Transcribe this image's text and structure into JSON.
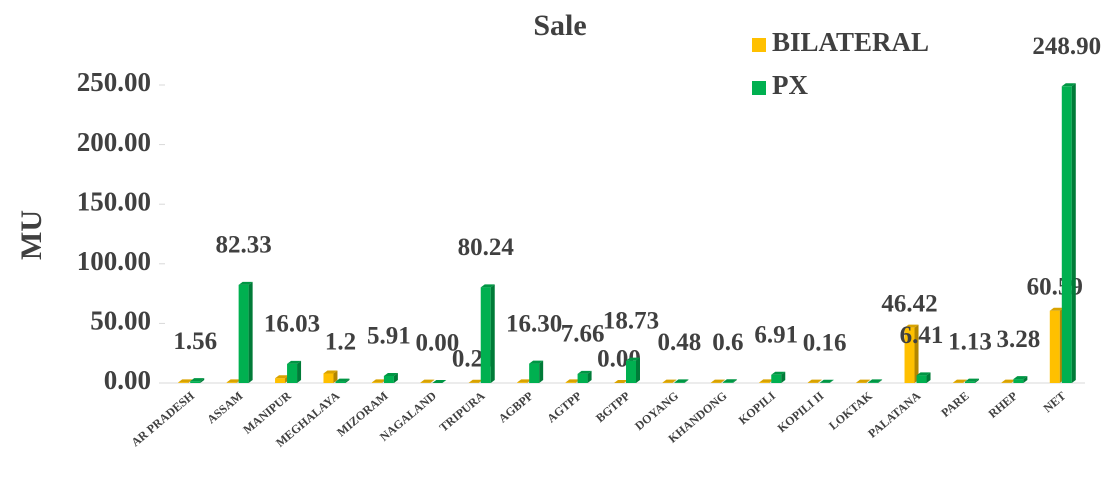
{
  "chart_data": {
    "type": "bar",
    "title": "Sale",
    "y_label": "MU",
    "categories": [
      "AR PRADESH",
      "ASSAM",
      "MANIPUR",
      "MEGHALAYA",
      "MIZORAM",
      "NAGALAND",
      "TRIPURA",
      "AGBPP",
      "AGTPP",
      "BGTPP",
      "DOYANG",
      "KHANDONG",
      "KOPILI",
      "KOPILI II",
      "LOKTAK",
      "PALATANA",
      "PARE",
      "RHEP",
      "NET"
    ],
    "series": [
      {
        "name": "BILATERAL",
        "color": "#ffc000",
        "values": [
          0.5,
          0.5,
          4,
          8,
          0.5,
          0.3,
          0.21,
          0.5,
          0.5,
          0,
          0.3,
          0.3,
          0.5,
          0.3,
          0.3,
          46.42,
          0.3,
          0.3,
          60.59
        ],
        "value_labels": [
          null,
          null,
          null,
          null,
          null,
          null,
          "0.21",
          null,
          null,
          "0.00",
          null,
          null,
          null,
          null,
          null,
          "46.42",
          null,
          null,
          "60.59"
        ]
      },
      {
        "name": "PX",
        "color": "#00b050",
        "values": [
          1.56,
          82.33,
          16.03,
          1.2,
          5.91,
          0,
          80.24,
          16.3,
          7.66,
          18.73,
          0.48,
          0.6,
          6.91,
          0.16,
          0.5,
          6.41,
          1.13,
          3.28,
          248.9
        ],
        "value_labels": [
          "1.56",
          "82.33",
          "16.03",
          "1.2",
          "5.91",
          "0.00",
          "80.24",
          "16.30",
          "7.66",
          "18.73",
          "0.48",
          "0.6",
          "6.91",
          "0.16",
          null,
          "6.41",
          "1.13",
          "3.28",
          "248.90"
        ]
      }
    ],
    "ylim": [
      0,
      250
    ],
    "yticks": [
      {
        "value": 0,
        "label": "0.00"
      },
      {
        "value": 50,
        "label": "50.00"
      },
      {
        "value": 100,
        "label": "100.00"
      },
      {
        "value": 150,
        "label": "150.00"
      },
      {
        "value": 200,
        "label": "200.00"
      },
      {
        "value": 250,
        "label": "250.00"
      }
    ],
    "legend": "top-right"
  }
}
